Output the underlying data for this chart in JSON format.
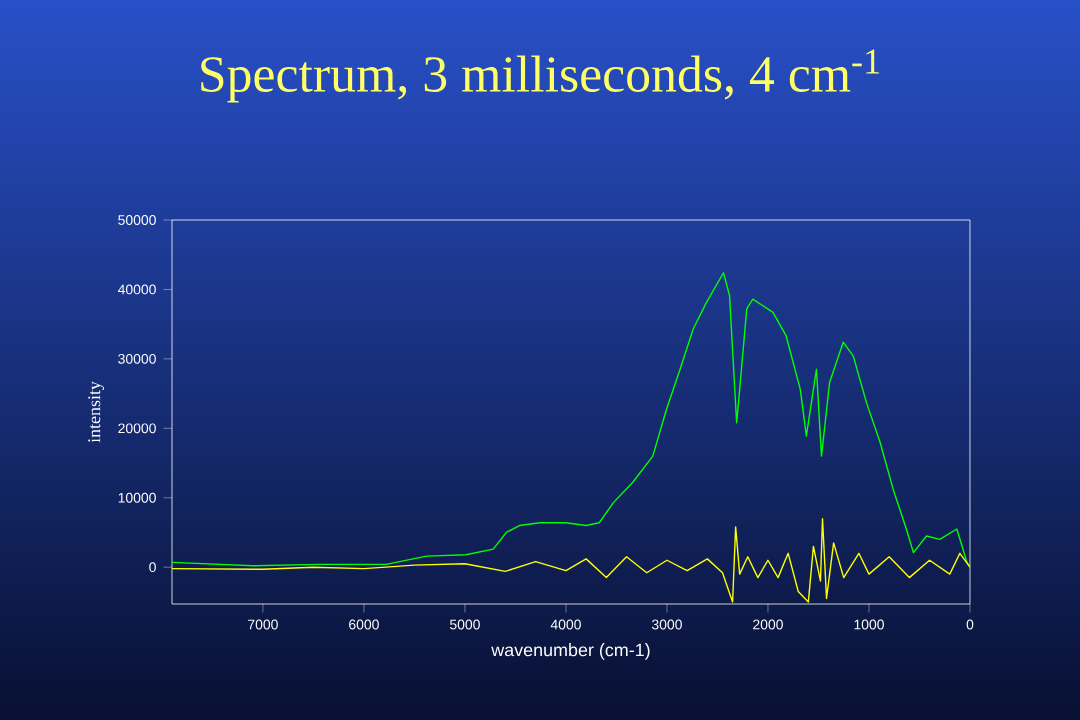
{
  "chart_data": {
    "type": "line",
    "title": "Spectrum, 3 milliseconds, 4 cm$^{-1}$",
    "xlabel": "wavenumber (cm-1)",
    "ylabel": "intensity",
    "xlim": [
      7900,
      0
    ],
    "xticks": [
      7000,
      6000,
      5000,
      4000,
      3000,
      2000,
      1000,
      0
    ],
    "ylim": [
      -5300,
      50000
    ],
    "yticks": [
      0,
      10000,
      20000,
      30000,
      40000,
      50000
    ],
    "marker": "none",
    "line_style": "solid",
    "series": [
      {
        "color": "#00ff00",
        "x": [
          7900,
          7100,
          6440,
          5780,
          5380,
          4990,
          4720,
          4590,
          4460,
          4260,
          4000,
          3800,
          3670,
          3530,
          3340,
          3140,
          3005,
          2870,
          2740,
          2610,
          2440,
          2380,
          2310,
          2280,
          2210,
          2150,
          1950,
          1820,
          1680,
          1620,
          1520,
          1470,
          1390,
          1255,
          1155,
          1025,
          890,
          760,
          630,
          560,
          430,
          300,
          130,
          30,
          0
        ],
        "values": [
          700,
          200,
          400,
          400,
          1600,
          1800,
          2600,
          5000,
          6000,
          6400,
          6400,
          6000,
          6400,
          9300,
          12200,
          16000,
          22700,
          28500,
          34300,
          38100,
          42400,
          39100,
          20800,
          25600,
          37200,
          38600,
          36700,
          33300,
          25600,
          18900,
          28500,
          16000,
          26600,
          32400,
          30400,
          23700,
          18000,
          11200,
          5500,
          2100,
          4500,
          4000,
          5500,
          700,
          0
        ]
      },
      {
        "color": "#ffff00",
        "x": [
          7900,
          7000,
          6500,
          6000,
          5500,
          5000,
          4600,
          4300,
          4000,
          3800,
          3600,
          3400,
          3200,
          3000,
          2800,
          2600,
          2450,
          2350,
          2320,
          2280,
          2200,
          2100,
          2000,
          1900,
          1800,
          1700,
          1600,
          1550,
          1480,
          1460,
          1420,
          1350,
          1250,
          1100,
          1000,
          800,
          600,
          400,
          200,
          100,
          0
        ],
        "values": [
          -200,
          -300,
          0,
          -200,
          300,
          500,
          -600,
          800,
          -500,
          1200,
          -1500,
          1500,
          -800,
          1000,
          -500,
          1200,
          -800,
          -5000,
          5800,
          -1000,
          1500,
          -1500,
          1000,
          -1500,
          2000,
          -3500,
          -5000,
          3000,
          -2000,
          7000,
          -4500,
          3500,
          -1500,
          2000,
          -1000,
          1500,
          -1500,
          1000,
          -1000,
          2000,
          0
        ]
      }
    ]
  }
}
